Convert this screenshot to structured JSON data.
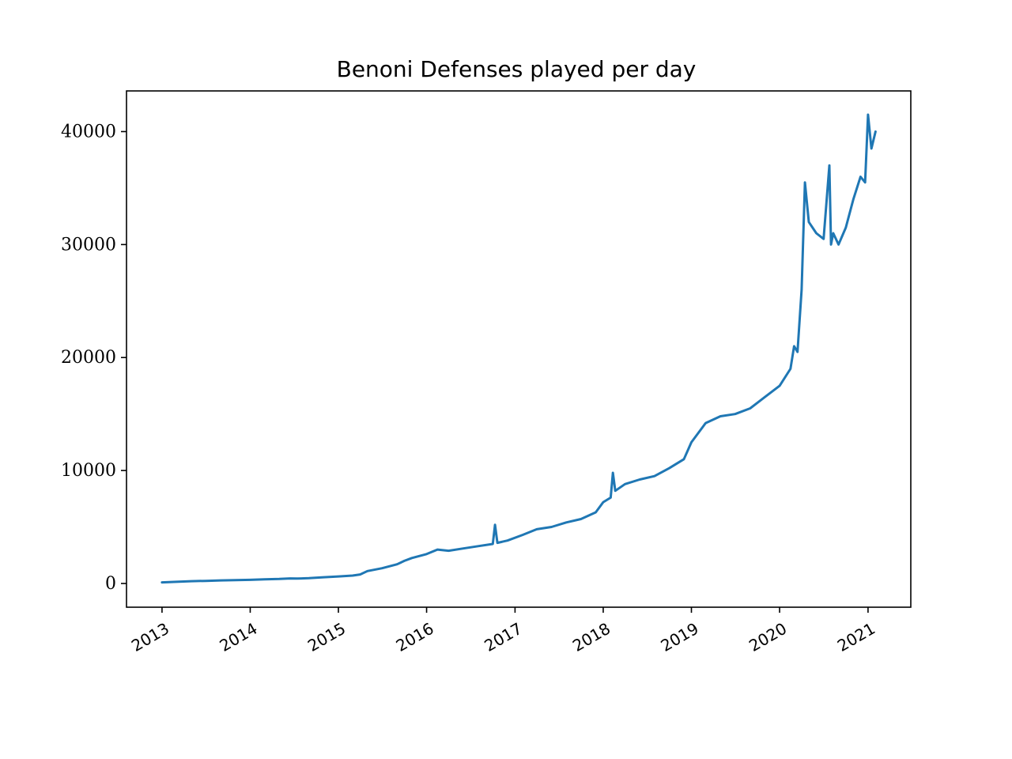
{
  "chart_data": {
    "type": "line",
    "title": "Benoni Defenses played per day",
    "xlabel": "",
    "ylabel": "",
    "xlim": [
      "2012-08-07",
      "2021-06-27"
    ],
    "ylim": [
      -2100,
      43600
    ],
    "grid": false,
    "legend": "none",
    "x_ticks": [
      "2013",
      "2014",
      "2015",
      "2016",
      "2017",
      "2018",
      "2019",
      "2020",
      "2021"
    ],
    "y_ticks": [
      0,
      10000,
      20000,
      30000,
      40000
    ],
    "y_tick_labels": [
      "0",
      "10000",
      "20000",
      "30000",
      "40000"
    ],
    "line_color": "#1f77b4",
    "series": [
      {
        "x": [
          "2013-01-01",
          "2013-03-01",
          "2013-05-01",
          "2013-07-01",
          "2013-09-01",
          "2013-11-01",
          "2014-01-01",
          "2014-03-01",
          "2014-05-01",
          "2014-06-15",
          "2014-07-15",
          "2014-09-01",
          "2014-11-01",
          "2015-01-01",
          "2015-03-01",
          "2015-04-01",
          "2015-05-01",
          "2015-07-01",
          "2015-09-01",
          "2015-10-01",
          "2015-11-01",
          "2016-01-01",
          "2016-02-15",
          "2016-04-01",
          "2016-06-01",
          "2016-08-01",
          "2016-10-01",
          "2016-10-10",
          "2016-10-20",
          "2016-12-01",
          "2017-02-01",
          "2017-04-01",
          "2017-06-01",
          "2017-08-01",
          "2017-10-01",
          "2017-12-01",
          "2018-01-01",
          "2018-02-01",
          "2018-02-10",
          "2018-02-20",
          "2018-04-01",
          "2018-06-01",
          "2018-08-01",
          "2018-10-01",
          "2018-12-01",
          "2019-01-01",
          "2019-03-01",
          "2019-05-01",
          "2019-07-01",
          "2019-09-01",
          "2019-11-01",
          "2020-01-01",
          "2020-02-15",
          "2020-03-01",
          "2020-03-15",
          "2020-04-01",
          "2020-04-15",
          "2020-05-01",
          "2020-06-01",
          "2020-07-01",
          "2020-07-25",
          "2020-08-01",
          "2020-08-10",
          "2020-09-01",
          "2020-10-01",
          "2020-11-01",
          "2020-12-01",
          "2020-12-20",
          "2021-01-01",
          "2021-01-15",
          "2021-02-01"
        ],
        "y": [
          100,
          150,
          200,
          230,
          270,
          300,
          320,
          360,
          400,
          450,
          430,
          470,
          550,
          620,
          700,
          800,
          1100,
          1350,
          1700,
          2000,
          2250,
          2600,
          3000,
          2900,
          3100,
          3300,
          3500,
          5200,
          3600,
          3800,
          4300,
          4800,
          5000,
          5400,
          5700,
          6300,
          7200,
          7600,
          9800,
          8200,
          8800,
          9200,
          9500,
          10200,
          11000,
          12500,
          14200,
          14800,
          15000,
          15500,
          16500,
          17500,
          19000,
          21000,
          20500,
          26000,
          35500,
          32000,
          31000,
          30500,
          37000,
          30000,
          31000,
          30000,
          31500,
          34000,
          36000,
          35500,
          41500,
          38500,
          40000
        ]
      }
    ]
  }
}
